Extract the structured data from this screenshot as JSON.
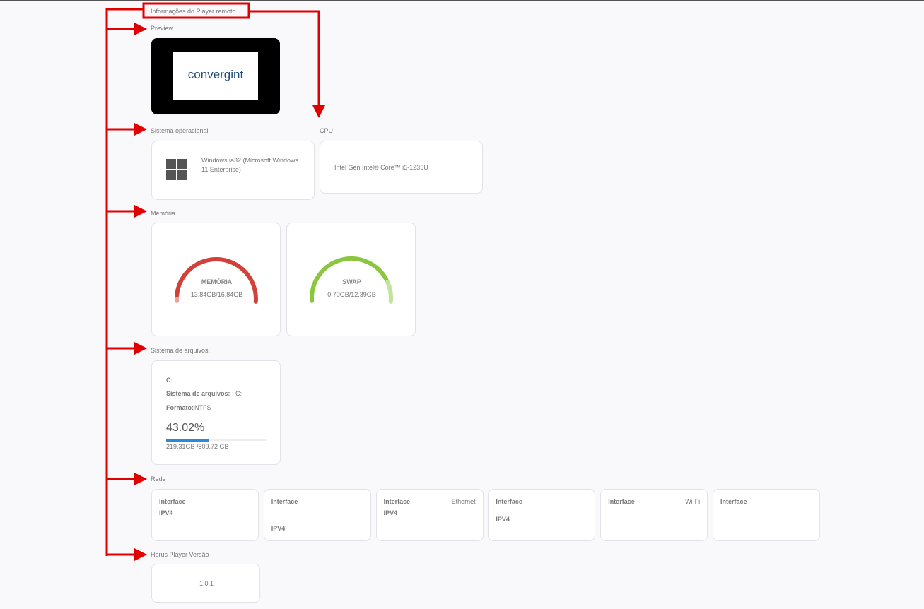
{
  "title": "Informações do Player remoto",
  "preview": {
    "label": "Preview",
    "logo": "convergint"
  },
  "os": {
    "label": "Sistema operacional",
    "value": "Windows ia32 (Microsoft Windows 11 Enterprise)"
  },
  "cpu": {
    "label": "CPU",
    "value": "Intel Gen Intel® Core™ i5-1235U"
  },
  "memory": {
    "label": "Memória",
    "gauges": [
      {
        "name": "MEMÓRIA",
        "value": "13.84GB/16.84GB"
      },
      {
        "name": "SWAP",
        "value": "0.70GB/12.39GB"
      }
    ]
  },
  "filesystem": {
    "label": "Sistema de arquivos:",
    "drive": "C:",
    "fs_label": "Sistema de arquivos:",
    "fs_value": ": C:",
    "format_label": "Formato:",
    "format_value": "NTFS",
    "usage": {
      "value": 43.02,
      "label": "43.02%"
    },
    "size": "219.31GB /509.72 GB"
  },
  "network": {
    "label": "Rede",
    "interfaces": [
      {
        "title": "Interface",
        "ipv4": "IPV4"
      },
      {
        "title": "Interface",
        "ipv4": "IPV4"
      },
      {
        "title": "Interface",
        "type": "Ethernet",
        "ipv4": "IPV4"
      },
      {
        "title": "Interface",
        "ipv4": "IPV4"
      },
      {
        "title": "Interface",
        "type": "Wi-Fi"
      },
      {
        "title": "Interface"
      }
    ]
  },
  "version": {
    "label": "Horus Player Versão",
    "value": "1.0.1"
  }
}
